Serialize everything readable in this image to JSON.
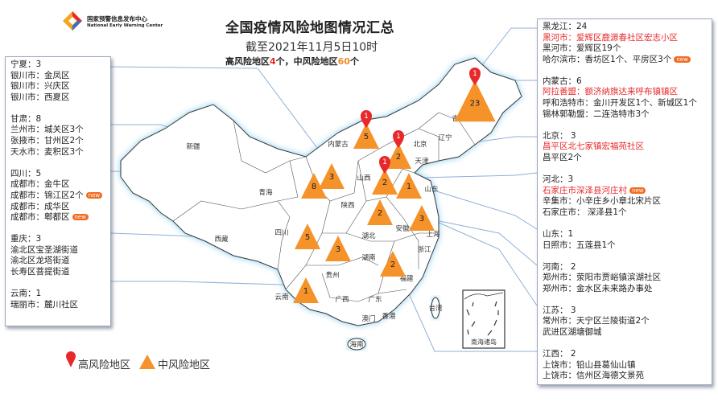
{
  "logo": {
    "name_cn": "国家预警信息发布中心",
    "name_en": "National Early Warning Center"
  },
  "header": {
    "title": "全国疫情风险地图情况汇总",
    "subtitle": "截至2021年11月5日10时",
    "high_label": "高风险地区",
    "high_count": "4",
    "mid_label": "，中风险地区",
    "mid_count": "60",
    "unit": "个"
  },
  "colors": {
    "high": "#e8282a",
    "medium": "#f5922a",
    "new_badge": "#f26b22",
    "leader": "#8fb0d8"
  },
  "left_panel": [
    {
      "header": "宁夏：3",
      "lines": [
        {
          "text": "银川市：金凤区"
        },
        {
          "text": "银川市：兴庆区"
        },
        {
          "text": "银川市：西夏区"
        }
      ]
    },
    {
      "header": "甘肃：8",
      "lines": [
        {
          "text": "兰州市：城关区3个"
        },
        {
          "text": "张掖市：甘州区2个"
        },
        {
          "text": "天水市：麦积区3个"
        }
      ]
    },
    {
      "header": "四川：5",
      "lines": [
        {
          "text": "成都市：金牛区"
        },
        {
          "text": "成都市：锦江区2个",
          "new": "new"
        },
        {
          "text": "成都市：成华区"
        },
        {
          "text": "成都市：郫都区",
          "new": "new"
        }
      ]
    },
    {
      "header": "重庆：3",
      "lines": [
        {
          "text": "渝北区宝圣湖街道"
        },
        {
          "text": "渝北区龙塔街道"
        },
        {
          "text": "长寿区菩提街道"
        }
      ]
    },
    {
      "header": "云南：1",
      "lines": [
        {
          "text": "瑞丽市：麓川社区"
        }
      ]
    }
  ],
  "right_panel": [
    {
      "header": "黑龙江：24",
      "lines": [
        {
          "text": "黑河市：爱辉区鹿源春社区宏志小区",
          "high": true
        },
        {
          "text": "黑河市：爱辉区19个"
        },
        {
          "text": "哈尔滨市：香坊区1个、平房区3个",
          "new": "new"
        }
      ]
    },
    {
      "header": "内蒙古：6",
      "lines": [
        {
          "text": "阿拉善盟：额济纳旗达来呼布镇镇区",
          "high": true
        },
        {
          "text": "呼和浩特市：金川开发区1个、新城区1个"
        },
        {
          "text": "锡林郭勒盟：二连浩特市3个"
        }
      ]
    },
    {
      "header": "北京： 3",
      "lines": [
        {
          "text": "昌平区北七家镇宏福苑社区",
          "high": true
        },
        {
          "text": "昌平区2个"
        }
      ]
    },
    {
      "header": "河北：3",
      "lines": [
        {
          "text": "石家庄市深泽县河庄村",
          "high": true,
          "new": "new"
        },
        {
          "text": "辛集市：小辛庄乡小章北宋片区"
        },
        {
          "text": "石家庄市：   深泽县1个"
        }
      ]
    },
    {
      "header": "山东：1",
      "lines": [
        {
          "text": "日照市：五莲县1个"
        }
      ]
    },
    {
      "header": "河南： 2",
      "lines": [
        {
          "text": "郑州市：荥阳市贾峪镇滨湖社区"
        },
        {
          "text": "郑州市：金水区未来路办事处"
        }
      ]
    },
    {
      "header": "江苏： 3",
      "lines": [
        {
          "text": "常州市：天宁区兰陵街道2个"
        },
        {
          "text": "武进区湖塘御城"
        }
      ]
    },
    {
      "header": "江西： 2",
      "lines": [
        {
          "text": "上饶市：铅山县葛仙山镇"
        },
        {
          "text": "上饶市：信州区海德文景苑"
        }
      ]
    }
  ],
  "provinces": [
    "新疆",
    "青海",
    "西藏",
    "内蒙古",
    "山西",
    "陕西",
    "吉林",
    "辽宁",
    "湖北",
    "安徽",
    "浙江",
    "湖南",
    "贵州",
    "广西",
    "广东",
    "福建",
    "台湾",
    "香港",
    "澳门",
    "海南",
    "上海",
    "北京",
    "山东",
    "天津",
    "四川",
    "云南"
  ],
  "markers": [
    {
      "province": "黑龙江",
      "medium": "23",
      "high": "1"
    },
    {
      "province": "内蒙古",
      "medium": "5",
      "high": "1"
    },
    {
      "province": "北京",
      "medium": "2",
      "high": "1"
    },
    {
      "province": "河北",
      "medium": "2",
      "high": "1"
    },
    {
      "province": "山东",
      "medium": "1"
    },
    {
      "province": "宁夏",
      "medium": "3"
    },
    {
      "province": "甘肃",
      "medium": "8"
    },
    {
      "province": "四川",
      "medium": "5"
    },
    {
      "province": "重庆",
      "medium": "3"
    },
    {
      "province": "云南",
      "medium": "1"
    },
    {
      "province": "河南",
      "medium": "2"
    },
    {
      "province": "江苏",
      "medium": "3"
    },
    {
      "province": "江西",
      "medium": "2"
    }
  ],
  "inset": {
    "label": "南海诸岛"
  },
  "legend": {
    "high": "高风险地区",
    "medium": "中风险地区"
  }
}
